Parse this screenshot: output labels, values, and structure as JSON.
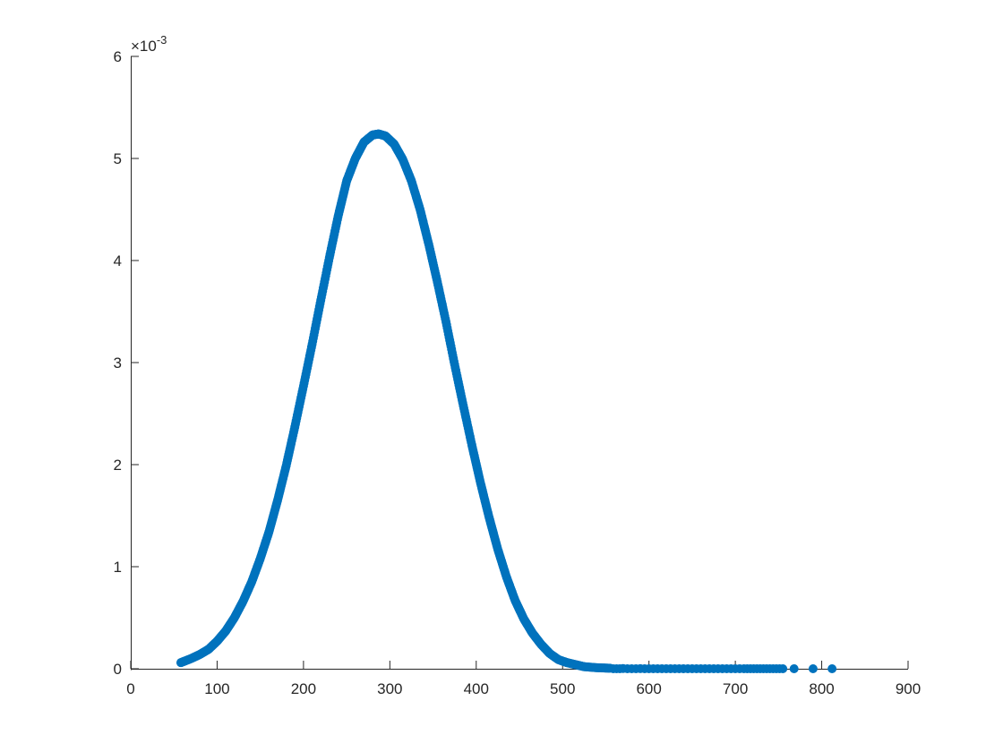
{
  "chart_data": {
    "type": "scatter",
    "title": "",
    "xlabel": "",
    "ylabel": "",
    "xlim": [
      0,
      900
    ],
    "ylim": [
      0,
      0.006
    ],
    "x_ticks": [
      0,
      100,
      200,
      300,
      400,
      500,
      600,
      700,
      800,
      900
    ],
    "x_tick_labels": [
      "0",
      "100",
      "200",
      "300",
      "400",
      "500",
      "600",
      "700",
      "800",
      "900"
    ],
    "y_ticks": [
      0,
      0.001,
      0.002,
      0.003,
      0.004,
      0.005,
      0.006
    ],
    "y_tick_labels": [
      "0",
      "1",
      "2",
      "3",
      "4",
      "5",
      "6"
    ],
    "y_exponent_base": "×10",
    "y_exponent_power": "-3",
    "grid": false,
    "box": false,
    "marker": "filled-circle",
    "color": "#0072BD",
    "series": [
      {
        "x": [
          58,
          70,
          80,
          90,
          100,
          110,
          120,
          130,
          140,
          150,
          160,
          170,
          180,
          190,
          200,
          210,
          220,
          230,
          240,
          250,
          260,
          270,
          280,
          287,
          295,
          305,
          315,
          325,
          335,
          345,
          355,
          365,
          375,
          385,
          395,
          405,
          415,
          425,
          435,
          445,
          455,
          465,
          475,
          485,
          495,
          505,
          515,
          525,
          540,
          555,
          570,
          590,
          610,
          630,
          650,
          670,
          690,
          710,
          725,
          740,
          755,
          768,
          790,
          812
        ],
        "y": [
          6e-05,
          0.0001,
          0.00014,
          0.00019,
          0.00027,
          0.00037,
          0.0005,
          0.00066,
          0.00085,
          0.00108,
          0.00134,
          0.00165,
          0.00199,
          0.00237,
          0.00277,
          0.00318,
          0.00361,
          0.00403,
          0.00443,
          0.00478,
          0.005,
          0.00516,
          0.00523,
          0.00524,
          0.00522,
          0.00514,
          0.00499,
          0.00478,
          0.0045,
          0.00416,
          0.00379,
          0.0034,
          0.00298,
          0.00258,
          0.00219,
          0.00182,
          0.00148,
          0.00117,
          0.0009,
          0.00067,
          0.00049,
          0.00035,
          0.00024,
          0.00015,
          9e-05,
          6e-05,
          4e-05,
          2e-05,
          1e-05,
          5e-06,
          2e-06,
          1e-06,
          5e-07,
          2e-07,
          1e-07,
          0,
          0,
          0,
          0,
          0,
          0,
          0,
          0,
          0
        ]
      }
    ]
  }
}
